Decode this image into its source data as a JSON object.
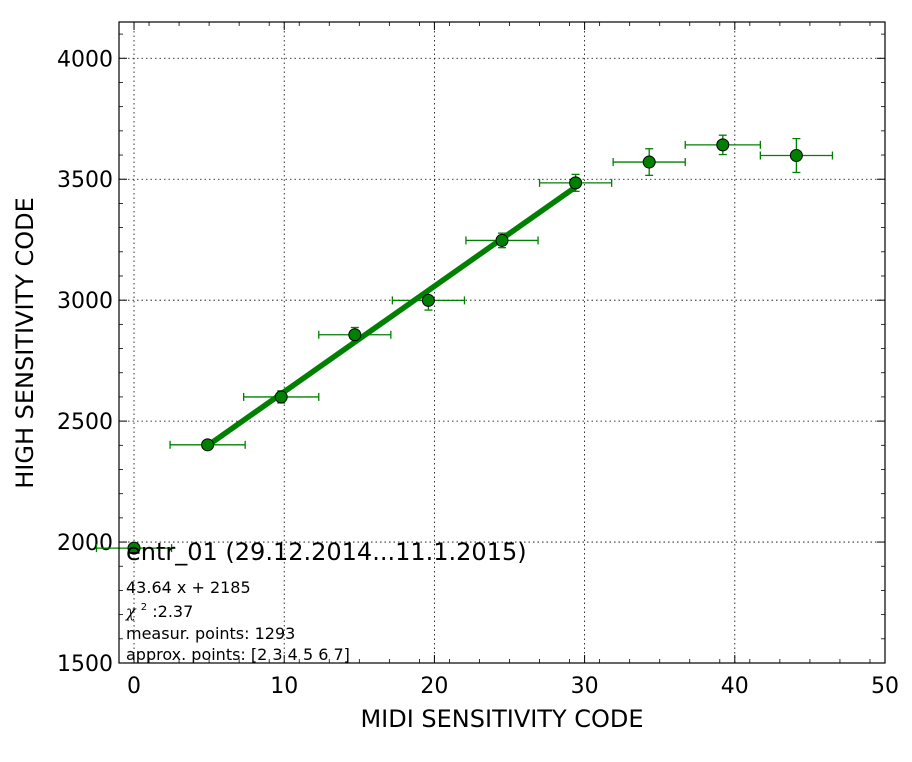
{
  "chart_data": {
    "type": "scatter",
    "title": "",
    "xlabel": "MIDI SENSITIVITY CODE",
    "ylabel": "HIGH SENSITIVITY CODE",
    "xlim": [
      -1,
      50
    ],
    "ylim": [
      1500,
      4150
    ],
    "x_ticks": [
      0,
      10,
      20,
      30,
      40,
      50
    ],
    "y_ticks": [
      1500,
      2000,
      2500,
      3000,
      3500,
      4000
    ],
    "grid": true,
    "marker_color": "#008000",
    "points": [
      {
        "x": 0.0,
        "y": 1975,
        "xerr": 2.5,
        "yerr": 15
      },
      {
        "x": 4.9,
        "y": 2402,
        "xerr": 2.5,
        "yerr": 15
      },
      {
        "x": 9.8,
        "y": 2600,
        "xerr": 2.5,
        "yerr": 25
      },
      {
        "x": 14.7,
        "y": 2857,
        "xerr": 2.4,
        "yerr": 30
      },
      {
        "x": 19.6,
        "y": 2999,
        "xerr": 2.4,
        "yerr": 40
      },
      {
        "x": 24.5,
        "y": 3247,
        "xerr": 2.4,
        "yerr": 30
      },
      {
        "x": 29.4,
        "y": 3485,
        "xerr": 2.4,
        "yerr": 35
      },
      {
        "x": 34.3,
        "y": 3571,
        "xerr": 2.4,
        "yerr": 55
      },
      {
        "x": 39.2,
        "y": 3642,
        "xerr": 2.5,
        "yerr": 40
      },
      {
        "x": 44.1,
        "y": 3598,
        "xerr": 2.4,
        "yerr": 70
      }
    ],
    "fit": {
      "slope": 43.64,
      "intercept": 2185,
      "x_range": [
        4.9,
        29.4
      ]
    },
    "annotations": {
      "heading": "entr_01 (29.12.2014...11.1.2015)",
      "equation": "43.64 x + 2185",
      "chi_symbol": "χ",
      "chi_exp": "2",
      "chi_value": " :2.37",
      "measur": "measur. points: 1293",
      "approx": "approx. points: [2 3 4 5 6 7]"
    }
  }
}
